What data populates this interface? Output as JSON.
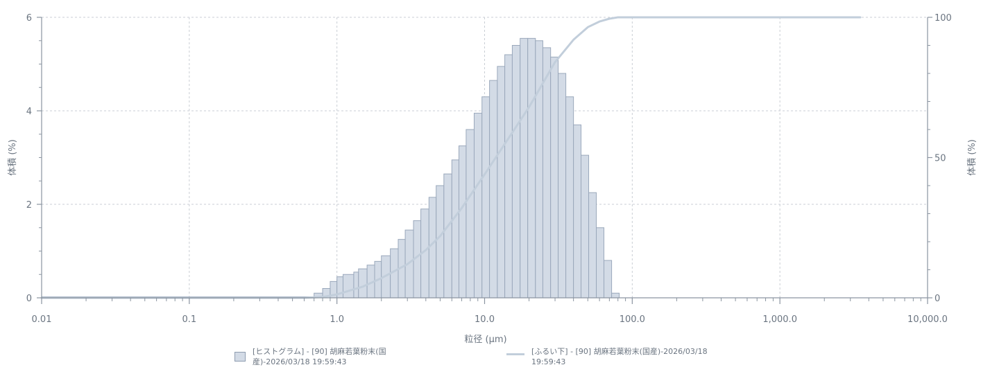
{
  "chart_data": {
    "type": "bar",
    "x_scale": "log",
    "xlim": [
      0.01,
      10000
    ],
    "xlabel": "粒径 (μm)",
    "x_ticks": [
      0.01,
      0.1,
      1,
      10,
      100,
      1000,
      10000
    ],
    "x_tick_labels": [
      "0.01",
      "0.1",
      "1.0",
      "10.0",
      "100.0",
      "1,000.0",
      "10,000.0"
    ],
    "ylabel_left": "体積 (%)",
    "ylim_left": [
      0,
      6
    ],
    "y_ticks_left": [
      0,
      2,
      4,
      6
    ],
    "y_tick_labels_left": [
      "0",
      "2",
      "4",
      "6"
    ],
    "ylabel_right": "体積 (%)",
    "ylim_right": [
      0,
      100
    ],
    "y_ticks_right": [
      0,
      50,
      100
    ],
    "y_tick_labels_right": [
      "0",
      "50",
      "100"
    ],
    "grid": true,
    "legend_position": "bottom",
    "colors": {
      "bar_fill": "#d3dbe6",
      "bar_stroke": "#9aa8bb",
      "line": "#c2cedb",
      "axis": "#8a94a0",
      "grid": "#c9ced4"
    },
    "series": [
      {
        "name": "[ヒストグラム] - [90] 胡麻若葉粉末(国産)-2026/03/18 19:59:43",
        "type": "bar",
        "axis": "left",
        "x_lower": [
          0.7,
          0.8,
          0.9,
          1.0,
          1.1,
          1.3,
          1.4,
          1.6,
          1.8,
          2.0,
          2.3,
          2.6,
          2.9,
          3.3,
          3.7,
          4.2,
          4.7,
          5.3,
          6.0,
          6.7,
          7.5,
          8.5,
          9.6,
          10.8,
          12.2,
          13.7,
          15.4,
          17.4,
          19.6,
          22.1,
          24.8,
          28.0,
          31.5,
          35.5,
          40.0,
          45.0,
          50.7,
          57.1,
          64.3,
          72.5
        ],
        "x_upper": [
          0.8,
          0.9,
          1.0,
          1.1,
          1.3,
          1.4,
          1.6,
          1.8,
          2.0,
          2.3,
          2.6,
          2.9,
          3.3,
          3.7,
          4.2,
          4.7,
          5.3,
          6.0,
          6.7,
          7.5,
          8.5,
          9.6,
          10.8,
          12.2,
          13.7,
          15.4,
          17.4,
          19.6,
          22.1,
          24.8,
          28.0,
          31.5,
          35.5,
          40.0,
          45.0,
          50.7,
          57.1,
          64.3,
          72.5,
          81.6
        ],
        "values": [
          0.1,
          0.2,
          0.35,
          0.45,
          0.5,
          0.55,
          0.62,
          0.7,
          0.78,
          0.9,
          1.05,
          1.25,
          1.45,
          1.65,
          1.9,
          2.15,
          2.4,
          2.65,
          2.95,
          3.25,
          3.6,
          3.95,
          4.3,
          4.65,
          4.95,
          5.2,
          5.4,
          5.55,
          5.55,
          5.5,
          5.35,
          5.15,
          4.8,
          4.3,
          3.7,
          3.05,
          2.25,
          1.5,
          0.8,
          0.1
        ]
      },
      {
        "name": "[ふるい下] - [90] 胡麻若葉粉末(国産)-2026/03/18 19:59:43",
        "type": "line",
        "axis": "right",
        "x": [
          0.01,
          0.6,
          0.8,
          1.0,
          1.5,
          2.0,
          3.0,
          4.0,
          5.0,
          7.0,
          10.0,
          15.0,
          20.0,
          30.0,
          40.0,
          50.0,
          60.0,
          70.0,
          80.0,
          100.0,
          3500.0
        ],
        "values": [
          0,
          0,
          0.3,
          1.2,
          4,
          7,
          12,
          17,
          22,
          32,
          44,
          58,
          68,
          84,
          92,
          96.5,
          98.5,
          99.5,
          100,
          100,
          100
        ]
      }
    ]
  },
  "legend": {
    "histogram_line1": "[ヒストグラム] - [90] 胡麻若葉粉末(国",
    "histogram_line2": "産)-2026/03/18 19:59:43",
    "cumulative_line1": "[ふるい下] - [90] 胡麻若葉粉末(国産)-2026/03/18",
    "cumulative_line2": "19:59:43"
  }
}
